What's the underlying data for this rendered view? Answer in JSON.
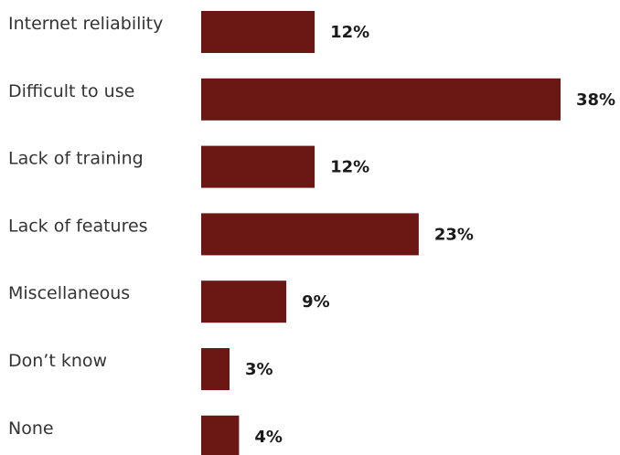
{
  "chart_data": {
    "type": "bar",
    "orientation": "horizontal",
    "title": "",
    "xlabel": "",
    "ylabel": "",
    "categories": [
      "Internet reliability",
      "Difficult to use",
      "Lack of training",
      "Lack of features",
      "Miscellaneous",
      "Don’t know",
      "None"
    ],
    "values": [
      12,
      38,
      12,
      23,
      9,
      3,
      4
    ],
    "value_labels": [
      "12%",
      "38%",
      "12%",
      "23%",
      "9%",
      "3%",
      "4%"
    ],
    "unit": "%",
    "xlim": [
      0,
      38
    ],
    "grid": false,
    "legend": "none",
    "colors": {
      "bar": "#6b1714",
      "category_text": "#333333",
      "value_text": "#1a1a1a"
    }
  }
}
